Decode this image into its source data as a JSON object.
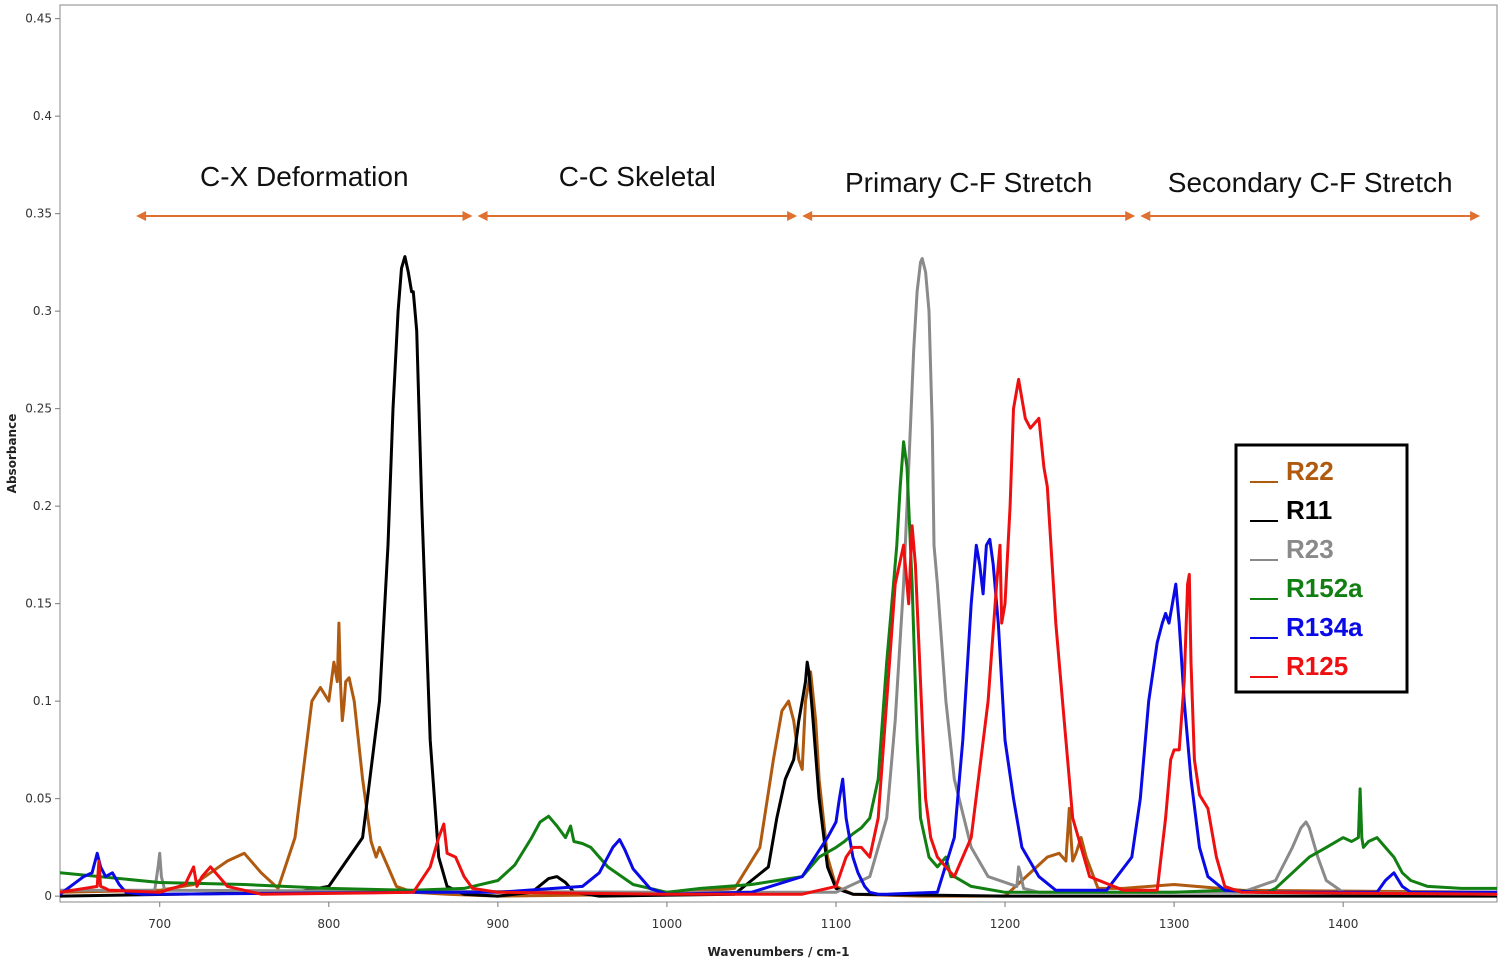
{
  "chart_data": {
    "type": "line",
    "xlabel": "Wavenumbers / cm-1",
    "ylabel": "Absorbance",
    "xlim": [
      641,
      1491
    ],
    "ylim": [
      -0.003,
      0.457
    ],
    "x_ticks": [
      700,
      800,
      900,
      1000,
      1100,
      1200,
      1300,
      1400
    ],
    "y_ticks": [
      0,
      0.05,
      0.1,
      0.15,
      0.2,
      0.25,
      0.3,
      0.35,
      0.4,
      0.45
    ],
    "x_tick_labels": [
      "700",
      "800",
      "900",
      "1000",
      "1100",
      "1200",
      "1300",
      "1400"
    ],
    "y_tick_labels": [
      "0",
      "0.05",
      "0.1",
      "0.15",
      "0.2",
      "0.25",
      "0.3",
      "0.35",
      "0.4",
      "0.45"
    ],
    "grid": false,
    "legend_position": "right",
    "regions": [
      {
        "label": "C-X Deformation",
        "x_start": 686,
        "x_end": 885
      },
      {
        "label": "C-C Skeletal",
        "x_start": 888,
        "x_end": 1077
      },
      {
        "label": "Primary C-F Stretch",
        "x_start": 1080,
        "x_end": 1277
      },
      {
        "label": "Secondary C-F Stretch",
        "x_start": 1280,
        "x_end": 1481
      }
    ],
    "region_color": "#E07030",
    "series": [
      {
        "name": "R22",
        "color": "#B05A10",
        "x": [
          641,
          700,
          720,
          730,
          740,
          750,
          760,
          770,
          780,
          790,
          795,
          800,
          803,
          805,
          806,
          807,
          808,
          809,
          810,
          812,
          815,
          820,
          825,
          828,
          830,
          835,
          840,
          850,
          870,
          900,
          1000,
          1040,
          1055,
          1063,
          1068,
          1072,
          1075,
          1078,
          1080,
          1082,
          1085,
          1088,
          1090,
          1095,
          1100,
          1110,
          1150,
          1200,
          1225,
          1232,
          1236,
          1238,
          1239,
          1240,
          1242,
          1245,
          1248,
          1255,
          1270,
          1300,
          1340,
          1491
        ],
        "y": [
          0.002,
          0.003,
          0.006,
          0.012,
          0.018,
          0.022,
          0.012,
          0.004,
          0.03,
          0.1,
          0.107,
          0.1,
          0.12,
          0.11,
          0.14,
          0.108,
          0.09,
          0.098,
          0.11,
          0.112,
          0.1,
          0.06,
          0.028,
          0.02,
          0.025,
          0.015,
          0.005,
          0.002,
          0.001,
          0.0,
          0.001,
          0.004,
          0.025,
          0.07,
          0.095,
          0.1,
          0.09,
          0.07,
          0.065,
          0.1,
          0.115,
          0.09,
          0.06,
          0.02,
          0.005,
          0.001,
          0.0,
          0.0,
          0.02,
          0.022,
          0.018,
          0.045,
          0.03,
          0.018,
          0.022,
          0.03,
          0.02,
          0.004,
          0.004,
          0.006,
          0.003,
          0.002
        ]
      },
      {
        "name": "R11",
        "color": "#000000",
        "x": [
          641,
          780,
          800,
          820,
          830,
          835,
          838,
          841,
          843,
          845,
          847,
          849,
          850,
          851,
          852,
          855,
          860,
          865,
          870,
          880,
          900,
          920,
          930,
          935,
          940,
          945,
          960,
          1040,
          1060,
          1065,
          1070,
          1075,
          1078,
          1080,
          1082,
          1083,
          1084,
          1086,
          1090,
          1095,
          1100,
          1110,
          1200,
          1491
        ],
        "y": [
          0.0,
          0.002,
          0.005,
          0.03,
          0.1,
          0.18,
          0.25,
          0.3,
          0.322,
          0.328,
          0.32,
          0.31,
          0.31,
          0.3,
          0.29,
          0.2,
          0.08,
          0.02,
          0.005,
          0.001,
          0.0,
          0.002,
          0.009,
          0.01,
          0.007,
          0.002,
          0.0,
          0.001,
          0.015,
          0.04,
          0.06,
          0.07,
          0.09,
          0.1,
          0.11,
          0.12,
          0.115,
          0.095,
          0.05,
          0.015,
          0.004,
          0.001,
          0.0,
          0.0
        ]
      },
      {
        "name": "R23",
        "color": "#8A8A8A",
        "x": [
          641,
          697,
          699,
          700,
          701,
          703,
          1000,
          1100,
          1120,
          1130,
          1135,
          1140,
          1143,
          1146,
          1148,
          1150,
          1151,
          1153,
          1155,
          1157,
          1158,
          1160,
          1165,
          1170,
          1180,
          1190,
          1207,
          1208,
          1209,
          1211,
          1220,
          1340,
          1360,
          1370,
          1375,
          1378,
          1380,
          1385,
          1390,
          1400,
          1491
        ],
        "y": [
          0.003,
          0.003,
          0.015,
          0.022,
          0.01,
          0.003,
          0.002,
          0.002,
          0.01,
          0.04,
          0.09,
          0.16,
          0.22,
          0.28,
          0.31,
          0.325,
          0.327,
          0.32,
          0.3,
          0.24,
          0.18,
          0.16,
          0.1,
          0.06,
          0.025,
          0.01,
          0.005,
          0.015,
          0.012,
          0.004,
          0.002,
          0.002,
          0.008,
          0.025,
          0.035,
          0.038,
          0.035,
          0.02,
          0.008,
          0.002,
          0.001
        ]
      },
      {
        "name": "R152a",
        "color": "#127F12",
        "x": [
          641,
          700,
          750,
          800,
          850,
          880,
          900,
          910,
          920,
          925,
          930,
          935,
          940,
          943,
          945,
          950,
          955,
          960,
          965,
          980,
          1000,
          1020,
          1050,
          1080,
          1090,
          1100,
          1105,
          1110,
          1115,
          1120,
          1125,
          1130,
          1133,
          1136,
          1138,
          1140,
          1142,
          1145,
          1148,
          1150,
          1155,
          1160,
          1165,
          1168,
          1170,
          1180,
          1200,
          1300,
          1330,
          1355,
          1360,
          1370,
          1380,
          1390,
          1400,
          1405,
          1409,
          1410,
          1411,
          1412,
          1415,
          1420,
          1425,
          1430,
          1435,
          1440,
          1450,
          1470,
          1491
        ],
        "y": [
          0.012,
          0.007,
          0.006,
          0.004,
          0.003,
          0.004,
          0.008,
          0.016,
          0.03,
          0.038,
          0.041,
          0.036,
          0.03,
          0.036,
          0.028,
          0.027,
          0.025,
          0.02,
          0.015,
          0.006,
          0.002,
          0.004,
          0.006,
          0.01,
          0.02,
          0.025,
          0.028,
          0.032,
          0.035,
          0.04,
          0.06,
          0.12,
          0.15,
          0.18,
          0.21,
          0.233,
          0.22,
          0.16,
          0.08,
          0.04,
          0.02,
          0.015,
          0.02,
          0.01,
          0.01,
          0.005,
          0.002,
          0.002,
          0.003,
          0.002,
          0.004,
          0.012,
          0.02,
          0.025,
          0.03,
          0.028,
          0.03,
          0.055,
          0.03,
          0.025,
          0.028,
          0.03,
          0.025,
          0.02,
          0.012,
          0.008,
          0.005,
          0.004,
          0.004
        ]
      },
      {
        "name": "R134a",
        "color": "#0A0AE6",
        "x": [
          641,
          655,
          660,
          663,
          665,
          668,
          672,
          676,
          680,
          690,
          700,
          850,
          900,
          950,
          960,
          968,
          972,
          975,
          980,
          990,
          1000,
          1050,
          1080,
          1095,
          1100,
          1102,
          1104,
          1106,
          1108,
          1110,
          1113,
          1117,
          1120,
          1125,
          1130,
          1160,
          1170,
          1175,
          1180,
          1183,
          1185,
          1187,
          1189,
          1191,
          1193,
          1196,
          1200,
          1205,
          1210,
          1220,
          1230,
          1260,
          1275,
          1280,
          1285,
          1290,
          1293,
          1295,
          1297,
          1299,
          1301,
          1303,
          1306,
          1310,
          1315,
          1320,
          1330,
          1350,
          1420,
          1425,
          1430,
          1435,
          1440,
          1491
        ],
        "y": [
          0.001,
          0.01,
          0.012,
          0.022,
          0.015,
          0.01,
          0.012,
          0.006,
          0.002,
          0.001,
          0.001,
          0.002,
          0.002,
          0.005,
          0.012,
          0.025,
          0.029,
          0.024,
          0.014,
          0.004,
          0.001,
          0.002,
          0.01,
          0.03,
          0.038,
          0.05,
          0.06,
          0.04,
          0.03,
          0.02,
          0.012,
          0.005,
          0.002,
          0.001,
          0.001,
          0.002,
          0.03,
          0.08,
          0.15,
          0.18,
          0.17,
          0.155,
          0.18,
          0.183,
          0.17,
          0.14,
          0.08,
          0.05,
          0.025,
          0.01,
          0.003,
          0.003,
          0.02,
          0.05,
          0.1,
          0.13,
          0.14,
          0.145,
          0.14,
          0.15,
          0.16,
          0.14,
          0.1,
          0.06,
          0.025,
          0.01,
          0.003,
          0.002,
          0.002,
          0.008,
          0.012,
          0.005,
          0.002,
          0.002
        ]
      },
      {
        "name": "R125",
        "color": "#EE1010",
        "x": [
          641,
          663,
          664,
          665,
          668,
          670,
          700,
          715,
          720,
          722,
          725,
          730,
          740,
          760,
          850,
          860,
          865,
          868,
          870,
          875,
          880,
          885,
          900,
          1000,
          1080,
          1100,
          1106,
          1110,
          1115,
          1120,
          1125,
          1130,
          1135,
          1140,
          1143,
          1145,
          1147,
          1149,
          1151,
          1153,
          1156,
          1160,
          1170,
          1180,
          1190,
          1195,
          1197,
          1198,
          1200,
          1203,
          1205,
          1208,
          1212,
          1215,
          1220,
          1223,
          1225,
          1230,
          1235,
          1240,
          1250,
          1270,
          1290,
          1295,
          1298,
          1300,
          1303,
          1306,
          1308,
          1309,
          1310,
          1312,
          1315,
          1320,
          1325,
          1330,
          1340,
          1491
        ],
        "y": [
          0.002,
          0.005,
          0.018,
          0.005,
          0.004,
          0.003,
          0.002,
          0.006,
          0.015,
          0.005,
          0.01,
          0.015,
          0.005,
          0.001,
          0.002,
          0.015,
          0.03,
          0.037,
          0.022,
          0.02,
          0.01,
          0.004,
          0.002,
          0.001,
          0.001,
          0.005,
          0.02,
          0.025,
          0.025,
          0.02,
          0.04,
          0.1,
          0.16,
          0.18,
          0.15,
          0.19,
          0.17,
          0.13,
          0.09,
          0.05,
          0.03,
          0.02,
          0.01,
          0.03,
          0.1,
          0.16,
          0.18,
          0.14,
          0.15,
          0.2,
          0.25,
          0.265,
          0.245,
          0.24,
          0.245,
          0.22,
          0.21,
          0.14,
          0.09,
          0.04,
          0.01,
          0.003,
          0.003,
          0.04,
          0.07,
          0.075,
          0.075,
          0.11,
          0.16,
          0.165,
          0.12,
          0.07,
          0.052,
          0.045,
          0.02,
          0.005,
          0.002,
          0.001
        ]
      }
    ]
  }
}
